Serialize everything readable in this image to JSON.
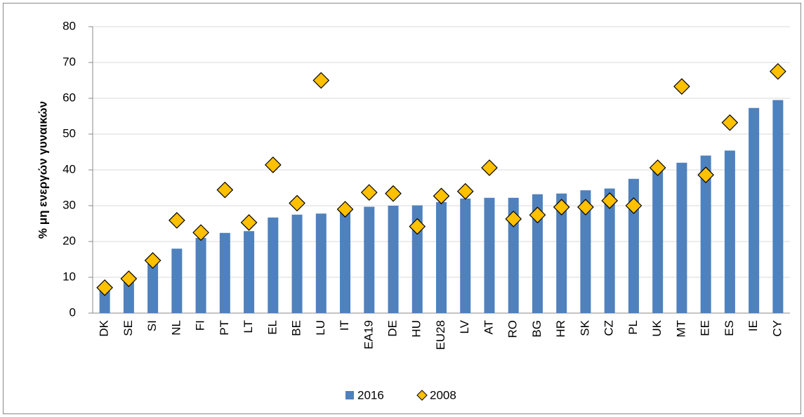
{
  "chart_data": {
    "type": "bar",
    "y_label": "% μη ενεργών γυναικών",
    "categories": [
      "DK",
      "SE",
      "SI",
      "NL",
      "FI",
      "PT",
      "LT",
      "EL",
      "BE",
      "LU",
      "IT",
      "EA19",
      "DE",
      "HU",
      "EU28",
      "LV",
      "AT",
      "RO",
      "BG",
      "HR",
      "SK",
      "CZ",
      "PL",
      "UK",
      "MT",
      "EE",
      "ES",
      "IE",
      "CY"
    ],
    "series": [
      {
        "name": "2016",
        "color": "#4f81bd",
        "marker": "bar",
        "values": [
          7.5,
          10,
          13.9,
          18,
          21,
          22.4,
          22.9,
          26.7,
          27.5,
          27.8,
          29,
          29.7,
          30,
          30.1,
          31,
          32,
          32.2,
          32.2,
          33.2,
          33.4,
          34.3,
          34.8,
          37.5,
          40,
          42,
          44,
          45.4,
          57.3,
          59.5
        ]
      },
      {
        "name": "2008",
        "color": "#ffc000",
        "marker": "diamond",
        "values": [
          7.1,
          9.6,
          14.7,
          25.9,
          22.5,
          34.4,
          25.3,
          41.4,
          30.7,
          65,
          29,
          33.7,
          33.4,
          24.2,
          32.7,
          34,
          40.6,
          26.3,
          27.4,
          29.6,
          29.6,
          31.4,
          30,
          40.6,
          63.3,
          38.6,
          53.2,
          null,
          67.5
        ]
      }
    ],
    "ylim": [
      0,
      80
    ],
    "yticks": [
      0,
      10,
      20,
      30,
      40,
      50,
      60,
      70,
      80
    ],
    "grid": true,
    "legend": "bottom"
  }
}
